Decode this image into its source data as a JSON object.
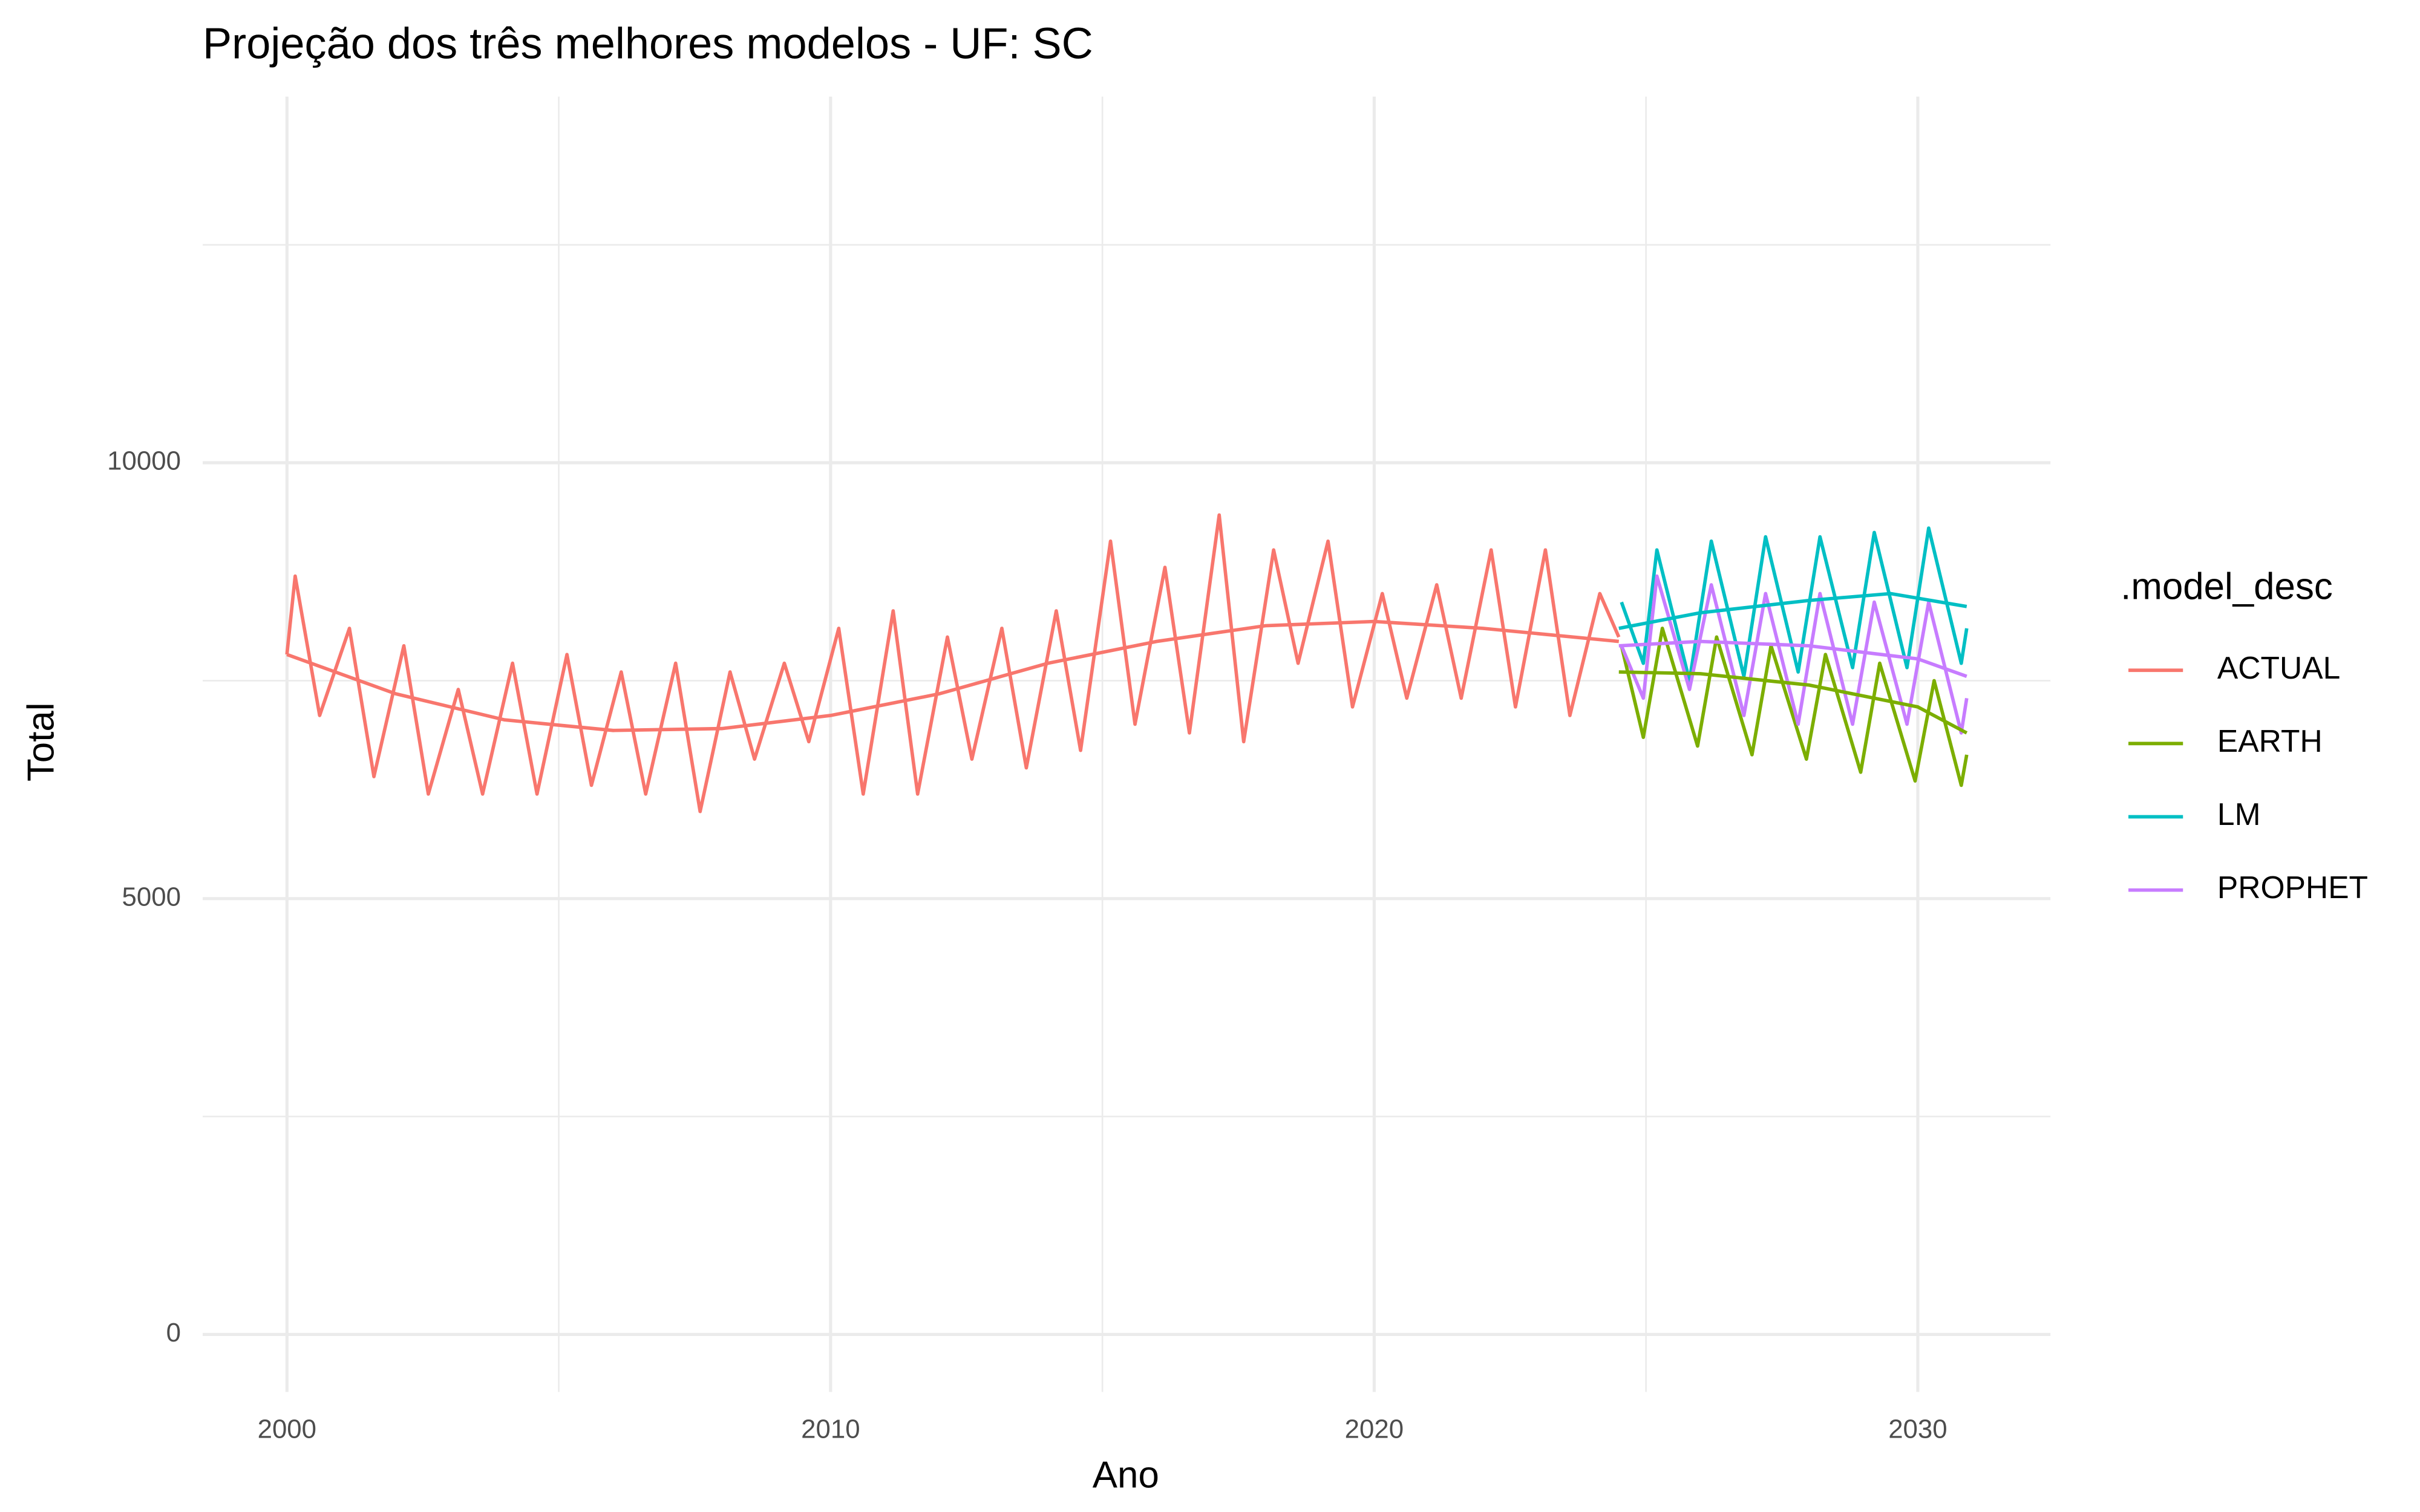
{
  "chart_data": {
    "type": "line",
    "title": "Projeção dos três melhores modelos - UF: SC",
    "x_label": "Ano",
    "y_label": "Total",
    "legend_title": ".model_desc",
    "legend_position": "right",
    "xlim": [
      1998.45,
      2032.44
    ],
    "xticks": [
      2000,
      2010,
      2020,
      2030
    ],
    "x_minor_grid": [
      2005,
      2015,
      2025
    ],
    "ylim": [
      -660,
      14200
    ],
    "yticks": [
      0,
      5000,
      10000
    ],
    "y_minor_grid": [
      2500,
      7500,
      12500
    ],
    "grid": true,
    "series": [
      {
        "name": "ACTUAL",
        "color": "#F8766D",
        "x": [
          2000.0,
          2000.15,
          2000.6,
          2001.15,
          2001.6,
          2002.15,
          2002.6,
          2003.15,
          2003.6,
          2004.15,
          2004.6,
          2005.15,
          2005.6,
          2006.15,
          2006.6,
          2007.15,
          2007.6,
          2008.15,
          2008.6,
          2009.15,
          2009.6,
          2010.15,
          2010.6,
          2011.15,
          2011.6,
          2012.15,
          2012.6,
          2013.15,
          2013.6,
          2014.15,
          2014.6,
          2015.15,
          2015.6,
          2016.15,
          2016.6,
          2017.15,
          2017.6,
          2018.15,
          2018.6,
          2019.15,
          2019.6,
          2020.15,
          2020.6,
          2021.15,
          2021.6,
          2022.15,
          2022.6,
          2023.15,
          2023.6,
          2024.15,
          2024.5
        ],
        "values": [
          7800,
          8700,
          7100,
          8100,
          6400,
          7900,
          6200,
          7400,
          6200,
          7700,
          6200,
          7800,
          6300,
          7600,
          6200,
          7700,
          6000,
          7600,
          6600,
          7700,
          6800,
          8100,
          6200,
          8300,
          6200,
          8000,
          6600,
          8100,
          6500,
          8300,
          6700,
          9100,
          7000,
          8800,
          6900,
          9400,
          6800,
          9000,
          7700,
          9100,
          7200,
          8500,
          7300,
          8600,
          7300,
          9000,
          7200,
          9000,
          7100,
          8500,
          8000
        ],
        "trend": {
          "x": [
            2000,
            2002,
            2004,
            2006,
            2008,
            2010,
            2012,
            2014,
            2016,
            2018,
            2020,
            2022,
            2024.5
          ],
          "values": [
            7800,
            7350,
            7050,
            6930,
            6950,
            7100,
            7350,
            7700,
            7950,
            8130,
            8180,
            8100,
            7950
          ]
        }
      },
      {
        "name": "EARTH",
        "color": "#7CAE00",
        "x": [
          2024.55,
          2024.95,
          2025.3,
          2025.95,
          2026.3,
          2026.95,
          2027.3,
          2027.95,
          2028.3,
          2028.95,
          2029.3,
          2029.95,
          2030.3,
          2030.8,
          2030.9
        ],
        "values": [
          7900,
          6850,
          8100,
          6750,
          8000,
          6650,
          7900,
          6600,
          7800,
          6450,
          7700,
          6350,
          7500,
          6300,
          6650
        ],
        "trend": {
          "x": [
            2024.5,
            2026,
            2028,
            2030,
            2030.9
          ],
          "values": [
            7600,
            7580,
            7450,
            7200,
            6900
          ]
        }
      },
      {
        "name": "LM",
        "color": "#00BFC4",
        "x": [
          2024.55,
          2024.95,
          2025.2,
          2025.8,
          2026.2,
          2026.8,
          2027.2,
          2027.8,
          2028.2,
          2028.8,
          2029.2,
          2029.8,
          2030.2,
          2030.8,
          2030.9
        ],
        "values": [
          8400,
          7700,
          9000,
          7500,
          9100,
          7550,
          9150,
          7600,
          9150,
          7650,
          9200,
          7650,
          9250,
          7700,
          8100
        ],
        "trend": {
          "x": [
            2024.5,
            2026,
            2028,
            2029.5,
            2030.9
          ],
          "values": [
            8100,
            8280,
            8420,
            8500,
            8350
          ]
        }
      },
      {
        "name": "PROPHET",
        "color": "#C77CFF",
        "x": [
          2024.55,
          2024.95,
          2025.2,
          2025.8,
          2026.2,
          2026.8,
          2027.2,
          2027.8,
          2028.2,
          2028.8,
          2029.2,
          2029.8,
          2030.2,
          2030.8,
          2030.9
        ],
        "values": [
          7900,
          7300,
          8700,
          7400,
          8600,
          7100,
          8500,
          7000,
          8500,
          7000,
          8400,
          7000,
          8400,
          6900,
          7300
        ],
        "trend": {
          "x": [
            2024.5,
            2026,
            2028,
            2030,
            2030.9
          ],
          "values": [
            7900,
            7950,
            7900,
            7750,
            7550
          ]
        }
      }
    ]
  }
}
